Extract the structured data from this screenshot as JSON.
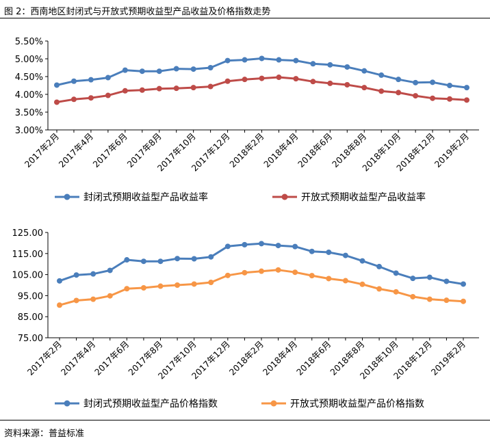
{
  "figure_title": "图 2：西南地区封闭式与开放式预期收益型产品收益及价格指数走势",
  "source": "资料来源：普益标准",
  "colors": {
    "blue": "#4a7ebb",
    "red": "#be4b48",
    "orange": "#f79646",
    "axis": "#000000"
  },
  "chart_data": [
    {
      "type": "line",
      "title": "",
      "x": [
        "2017年2月",
        "2017年3月",
        "2017年4月",
        "2017年5月",
        "2017年6月",
        "2017年7月",
        "2017年8月",
        "2017年9月",
        "2017年10月",
        "2017年11月",
        "2017年12月",
        "2018年1月",
        "2018年2月",
        "2018年3月",
        "2018年4月",
        "2018年5月",
        "2018年6月",
        "2018年7月",
        "2018年8月",
        "2018年9月",
        "2018年10月",
        "2018年11月",
        "2018年12月",
        "2019年1月",
        "2019年2月"
      ],
      "xticks": [
        "2017年2月",
        "2017年4月",
        "2017年6月",
        "2017年8月",
        "2017年10月",
        "2017年12月",
        "2018年2月",
        "2018年4月",
        "2018年6月",
        "2018年8月",
        "2018年10月",
        "2018年12月",
        "2019年2月"
      ],
      "yticks": [
        "3.00%",
        "3.50%",
        "4.00%",
        "4.50%",
        "5.00%",
        "5.50%"
      ],
      "ylim": [
        3.0,
        5.5
      ],
      "ylabel": "",
      "xlabel": "",
      "grid": false,
      "legend_position": "bottom",
      "series": [
        {
          "name": "封闭式预期收益型产品收益率",
          "color": "#4a7ebb",
          "values": [
            4.26,
            4.37,
            4.41,
            4.47,
            4.68,
            4.65,
            4.65,
            4.72,
            4.71,
            4.75,
            4.95,
            4.97,
            5.01,
            4.97,
            4.95,
            4.86,
            4.83,
            4.77,
            4.66,
            4.54,
            4.42,
            4.33,
            4.34,
            4.25,
            4.19
          ]
        },
        {
          "name": "开放式预期收益型产品收益率",
          "color": "#be4b48",
          "values": [
            3.78,
            3.86,
            3.9,
            3.97,
            4.1,
            4.12,
            4.16,
            4.17,
            4.19,
            4.22,
            4.37,
            4.42,
            4.45,
            4.48,
            4.44,
            4.36,
            4.31,
            4.27,
            4.19,
            4.09,
            4.05,
            3.96,
            3.89,
            3.87,
            3.84
          ]
        }
      ]
    },
    {
      "type": "line",
      "title": "",
      "x": [
        "2017年2月",
        "2017年3月",
        "2017年4月",
        "2017年5月",
        "2017年6月",
        "2017年7月",
        "2017年8月",
        "2017年9月",
        "2017年10月",
        "2017年11月",
        "2017年12月",
        "2018年1月",
        "2018年2月",
        "2018年3月",
        "2018年4月",
        "2018年5月",
        "2018年6月",
        "2018年7月",
        "2018年8月",
        "2018年9月",
        "2018年10月",
        "2018年11月",
        "2018年12月",
        "2019年1月",
        "2019年2月"
      ],
      "xticks": [
        "2017年2月",
        "2017年4月",
        "2017年6月",
        "2017年8月",
        "2017年10月",
        "2017年12月",
        "2018年2月",
        "2018年4月",
        "2018年6月",
        "2018年8月",
        "2018年10月",
        "2018年12月",
        "2019年2月"
      ],
      "yticks": [
        "75.00",
        "85.00",
        "95.00",
        "105.00",
        "115.00",
        "125.00"
      ],
      "ylim": [
        75,
        125
      ],
      "ylabel": "",
      "xlabel": "",
      "grid": false,
      "legend_position": "bottom",
      "series": [
        {
          "name": "封闭式预期收益型产品价格指数",
          "color": "#4a7ebb",
          "values": [
            102.0,
            104.8,
            105.3,
            107.0,
            112.0,
            111.3,
            111.3,
            112.6,
            112.5,
            113.4,
            118.4,
            119.2,
            119.7,
            118.8,
            118.3,
            116.0,
            115.6,
            114.1,
            111.5,
            108.8,
            105.7,
            103.2,
            103.7,
            101.8,
            100.5
          ]
        },
        {
          "name": "开放式预期收益型产品价格指数",
          "color": "#f79646",
          "values": [
            90.5,
            92.7,
            93.3,
            94.9,
            98.3,
            98.7,
            99.5,
            100.0,
            100.5,
            101.3,
            104.6,
            105.9,
            106.6,
            107.2,
            106.1,
            104.5,
            103.1,
            102.1,
            100.4,
            98.2,
            96.8,
            94.5,
            93.3,
            92.8,
            92.3
          ]
        }
      ]
    }
  ]
}
